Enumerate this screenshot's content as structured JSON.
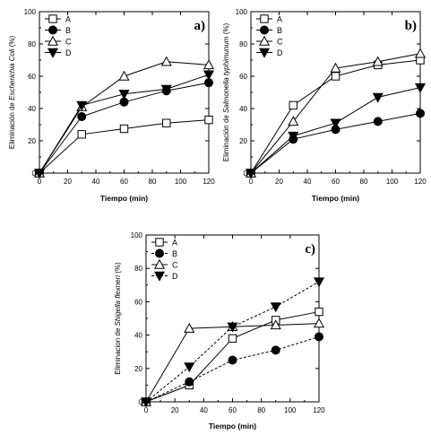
{
  "chart_data": [
    {
      "type": "line",
      "panel_label": "a)",
      "xlabel": "Tiempo (min)",
      "ylabel_prefix": "Eliminación de ",
      "ylabel_italic": "Escherichia Coli",
      "ylabel_suffix": " (%)",
      "xlim": [
        0,
        120
      ],
      "ylim": [
        0,
        100
      ],
      "xticks": [
        0,
        20,
        40,
        60,
        80,
        100,
        120
      ],
      "yticks": [
        0,
        20,
        40,
        60,
        80,
        100
      ],
      "legend_placement": "top-left",
      "series": [
        {
          "name": "A",
          "marker": "square-open",
          "line": "solid",
          "x": [
            0,
            30,
            60,
            90,
            120
          ],
          "y": [
            0,
            24,
            27.5,
            31,
            33
          ]
        },
        {
          "name": "B",
          "marker": "circle-filled",
          "line": "solid",
          "x": [
            0,
            30,
            60,
            90,
            120
          ],
          "y": [
            0,
            35,
            44,
            51,
            56
          ]
        },
        {
          "name": "C",
          "marker": "triangle-up-open",
          "line": "solid",
          "x": [
            0,
            30,
            60,
            90,
            120
          ],
          "y": [
            0,
            41,
            60,
            69,
            67
          ]
        },
        {
          "name": "D",
          "marker": "triangle-down-filled",
          "line": "solid",
          "x": [
            0,
            30,
            60,
            90,
            120
          ],
          "y": [
            0,
            42,
            49,
            52,
            61
          ]
        }
      ]
    },
    {
      "type": "line",
      "panel_label": "b)",
      "xlabel": "Tiempo (min)",
      "ylabel_prefix": "Eliminación de ",
      "ylabel_italic": "Salmonella typhimunum",
      "ylabel_suffix": " (%)",
      "xlim": [
        0,
        120
      ],
      "ylim": [
        0,
        100
      ],
      "xticks": [
        0,
        20,
        40,
        60,
        80,
        100,
        120
      ],
      "yticks": [
        0,
        20,
        40,
        60,
        80,
        100
      ],
      "legend_placement": "top-left",
      "series": [
        {
          "name": "A",
          "marker": "square-open",
          "line": "solid",
          "x": [
            0,
            30,
            60,
            90,
            120
          ],
          "y": [
            0,
            42,
            60,
            67,
            70
          ]
        },
        {
          "name": "B",
          "marker": "circle-filled",
          "line": "solid",
          "x": [
            0,
            30,
            60,
            90,
            120
          ],
          "y": [
            0,
            21,
            27,
            32,
            37
          ]
        },
        {
          "name": "C",
          "marker": "triangle-up-open",
          "line": "solid",
          "x": [
            0,
            30,
            60,
            90,
            120
          ],
          "y": [
            0,
            32,
            65,
            69,
            74
          ]
        },
        {
          "name": "D",
          "marker": "triangle-down-filled",
          "line": "solid",
          "x": [
            0,
            30,
            60,
            90,
            120
          ],
          "y": [
            0,
            23,
            31,
            47,
            53
          ]
        }
      ]
    },
    {
      "type": "line",
      "panel_label": "c)",
      "xlabel": "Tiempo (min)",
      "ylabel_prefix": "Eliminacion de ",
      "ylabel_italic": "Shigella flexneri",
      "ylabel_suffix": " (%)",
      "xlim": [
        0,
        120
      ],
      "ylim": [
        0,
        100
      ],
      "xticks": [
        0,
        20,
        40,
        60,
        80,
        100,
        120
      ],
      "yticks": [
        0,
        20,
        40,
        60,
        80,
        100
      ],
      "legend_placement": "top-left",
      "series": [
        {
          "name": "A",
          "marker": "square-open",
          "line": "solid",
          "x": [
            0,
            30,
            60,
            90,
            120
          ],
          "y": [
            0,
            10,
            38,
            49,
            54
          ]
        },
        {
          "name": "B",
          "marker": "circle-filled",
          "line": "dashed",
          "x": [
            0,
            30,
            60,
            90,
            120
          ],
          "y": [
            0,
            12,
            25,
            31,
            39
          ]
        },
        {
          "name": "C",
          "marker": "triangle-up-open",
          "line": "solid",
          "x": [
            0,
            30,
            60,
            90,
            120
          ],
          "y": [
            0,
            44,
            45,
            46,
            47
          ]
        },
        {
          "name": "D",
          "marker": "triangle-down-filled",
          "line": "dashed",
          "x": [
            0,
            30,
            60,
            90,
            120
          ],
          "y": [
            0,
            21,
            45,
            57,
            72
          ]
        }
      ]
    }
  ]
}
